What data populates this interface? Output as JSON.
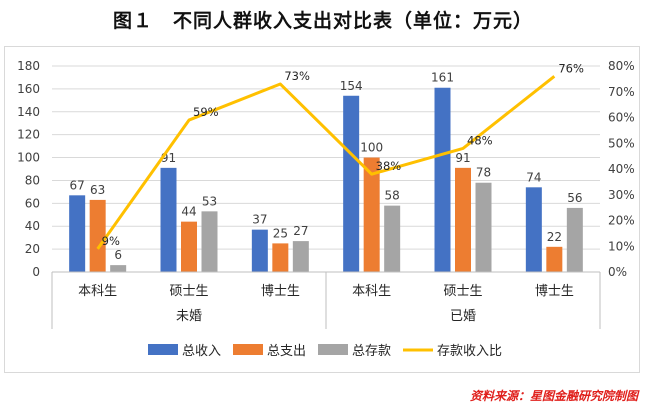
{
  "title": "图１　不同人群收入支出对比表（单位：万元）",
  "source": "资料来源：星图金融研究院制图",
  "chart_data": {
    "type": "bar",
    "groups": [
      {
        "label": "未婚",
        "categories": [
          "本科生",
          "硕士生",
          "博士生"
        ]
      },
      {
        "label": "已婚",
        "categories": [
          "本科生",
          "硕士生",
          "博士生"
        ]
      }
    ],
    "series": [
      {
        "name": "总收入",
        "type": "bar",
        "color": "#4472c4",
        "values": [
          67,
          91,
          37,
          154,
          161,
          74
        ]
      },
      {
        "name": "总支出",
        "type": "bar",
        "color": "#ed7d31",
        "values": [
          63,
          44,
          25,
          100,
          91,
          22
        ]
      },
      {
        "name": "总存款",
        "type": "bar",
        "color": "#a5a5a5",
        "values": [
          6,
          53,
          27,
          58,
          78,
          56
        ]
      },
      {
        "name": "存款收入比",
        "type": "line",
        "axis": "right",
        "color": "#ffc000",
        "values": [
          9,
          59,
          73,
          38,
          48,
          76
        ],
        "labels": [
          "9%",
          "59%",
          "73%",
          "38%",
          "48%",
          "76%"
        ]
      }
    ],
    "y_left": {
      "min": 0,
      "max": 180,
      "step": 20,
      "ticks": [
        "0",
        "20",
        "40",
        "60",
        "80",
        "100",
        "120",
        "140",
        "160",
        "180"
      ]
    },
    "y_right": {
      "min": 0,
      "max": 80,
      "step": 10,
      "ticks": [
        "0%",
        "10%",
        "20%",
        "30%",
        "40%",
        "50%",
        "60%",
        "70%",
        "80%"
      ]
    },
    "grid": true,
    "legend": "bottom"
  }
}
